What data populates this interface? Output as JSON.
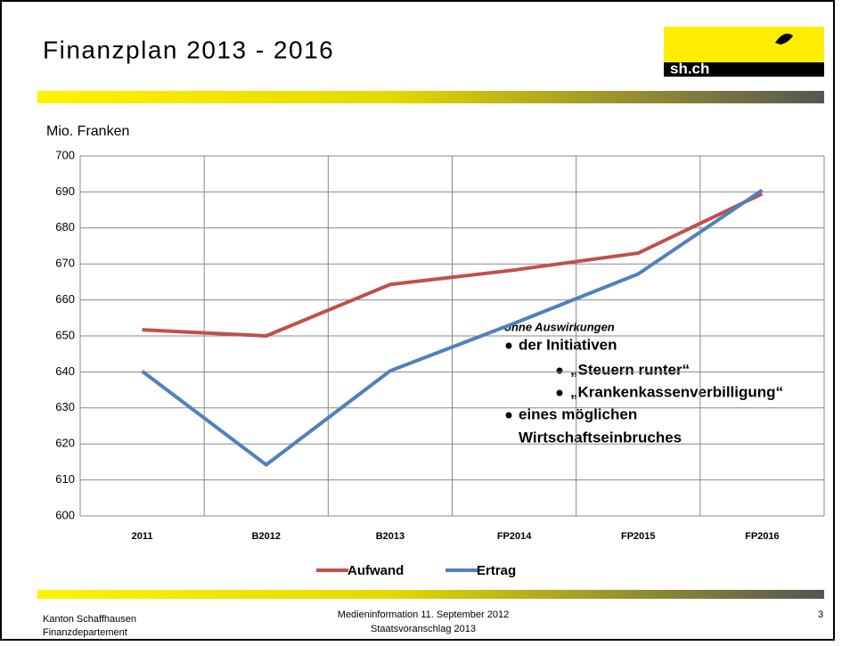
{
  "header": {
    "title": "Finanzplan 2013 - 2016",
    "logo": "sh.ch"
  },
  "chart_data": {
    "type": "line",
    "y_label": "Mio. Franken",
    "categories": [
      "2011",
      "B2012",
      "B2013",
      "FP2014",
      "FP2015",
      "FP2016"
    ],
    "series": [
      {
        "name": "Aufwand",
        "color": "#c0504d",
        "values": [
          651.7,
          650,
          664.3,
          668.3,
          673,
          689.5
        ]
      },
      {
        "name": "Ertrag",
        "color": "#4f81bd",
        "values": [
          640.2,
          614.2,
          640.3,
          653.5,
          667.2,
          690.5
        ]
      }
    ],
    "ylim": [
      600,
      700
    ],
    "yticks": [
      600,
      610,
      620,
      630,
      640,
      650,
      660,
      670,
      680,
      690,
      700
    ],
    "grid": true,
    "legend": "bottom"
  },
  "annotation": {
    "heading": "ohne Auswirkungen",
    "items": [
      "der Initiativen",
      "„Steuern runter“",
      "„Krankenkassenverbilligung“",
      "eines möglichen",
      "Wirtschaftseinbruches"
    ]
  },
  "footer": {
    "left": [
      "Kanton Schaffhausen",
      "Finanzdepartement"
    ],
    "center": [
      "Medieninformation 11. September 2012",
      "Staatsvoranschlag 2013"
    ],
    "page": "3"
  }
}
